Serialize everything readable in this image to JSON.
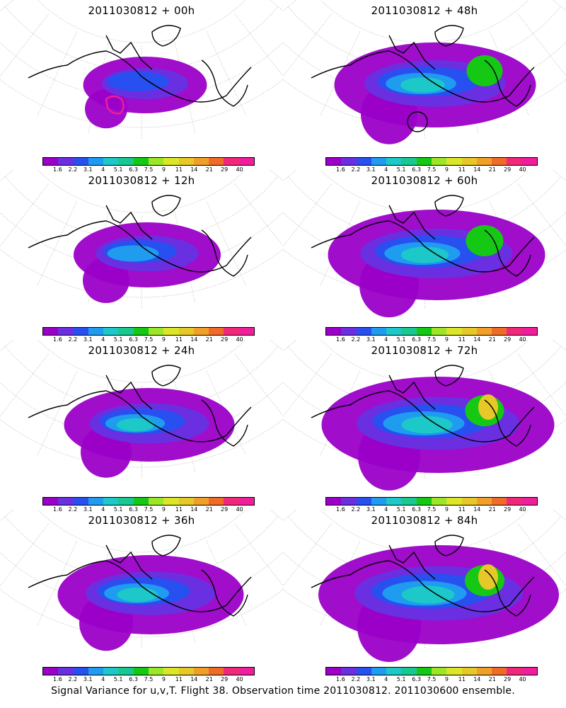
{
  "panels": [
    {
      "title": "2011030812 + 00h",
      "spread": 0.25,
      "marker": "magenta-contour"
    },
    {
      "title": "2011030812 + 48h",
      "spread": 0.75,
      "marker": "black-circle"
    },
    {
      "title": "2011030812 + 12h",
      "spread": 0.4,
      "marker": ""
    },
    {
      "title": "2011030812 + 60h",
      "spread": 0.85,
      "marker": ""
    },
    {
      "title": "2011030812 + 24h",
      "spread": 0.55,
      "marker": ""
    },
    {
      "title": "2011030812 + 72h",
      "spread": 0.95,
      "marker": ""
    },
    {
      "title": "2011030812 + 36h",
      "spread": 0.65,
      "marker": ""
    },
    {
      "title": "2011030812 + 84h",
      "spread": 1.0,
      "marker": ""
    }
  ],
  "colorbar": {
    "labels": [
      "1.6",
      "2.2",
      "3.1",
      "4",
      "5.1",
      "6.3",
      "7.5",
      "9",
      "11",
      "14",
      "21",
      "29",
      "40"
    ],
    "colors": [
      "#9b00c8",
      "#6a2fe0",
      "#2850f0",
      "#1f9bf0",
      "#1dc8c8",
      "#19c890",
      "#14c814",
      "#9ce628",
      "#dce628",
      "#e6c828",
      "#f0a028",
      "#f06a28",
      "#f0287a",
      "#f01e9b"
    ]
  },
  "footer": "Signal Variance for u,v,T. Flight 38. Observation time 2011030812. 2011030600 ensemble."
}
